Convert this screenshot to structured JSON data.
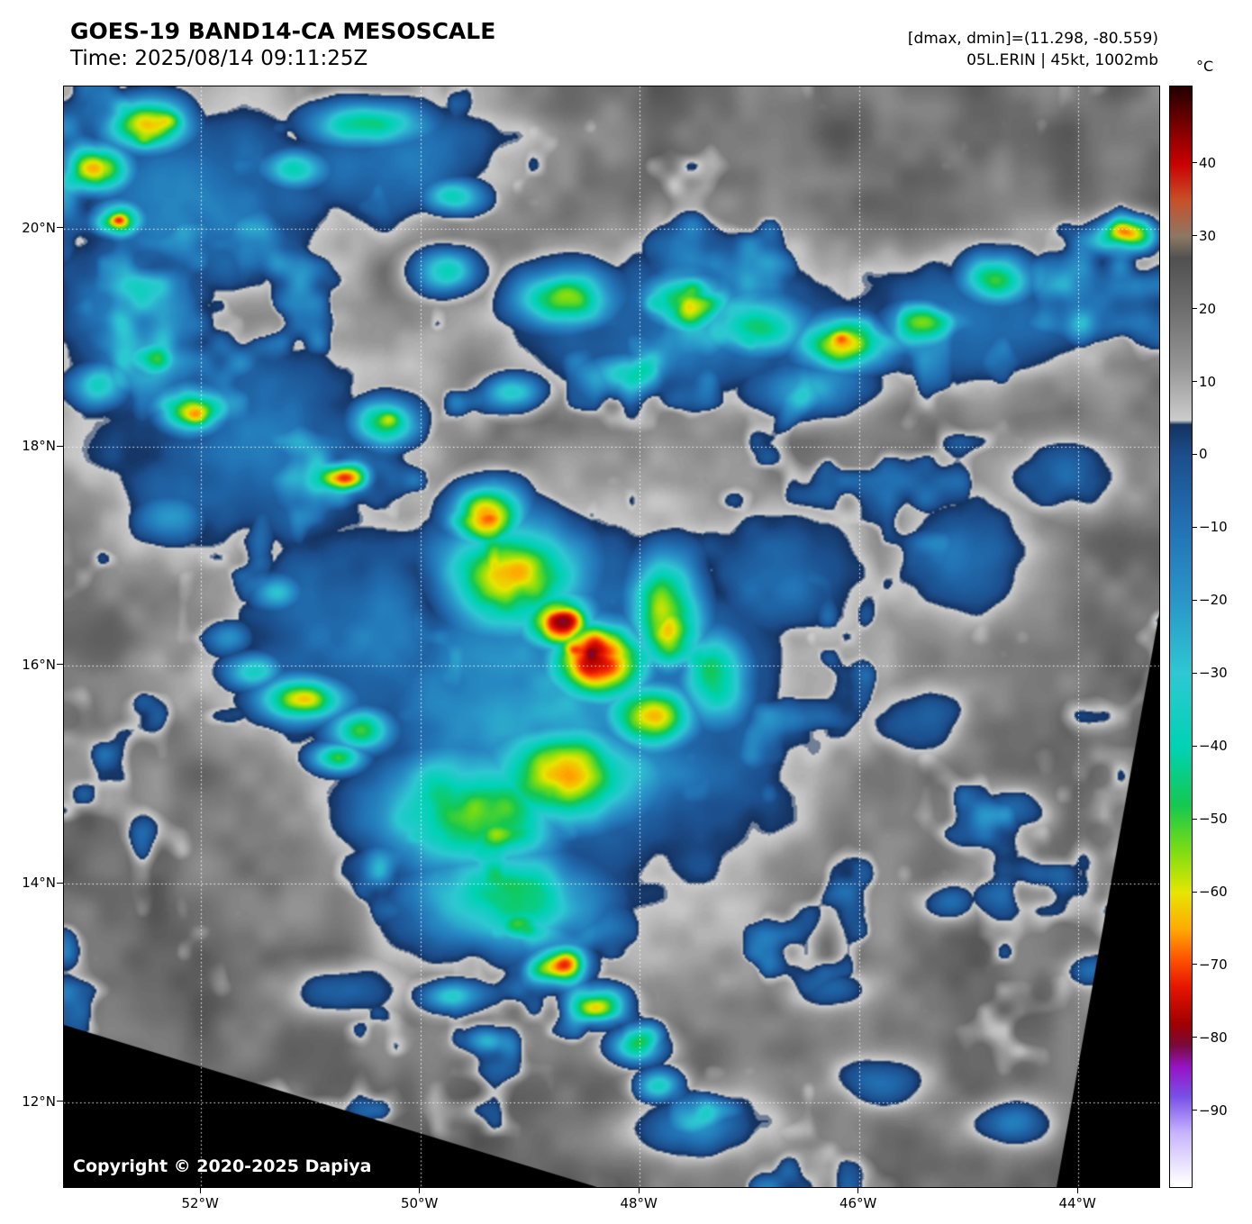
{
  "header": {
    "title": "GOES-19 BAND14-CA MESOSCALE",
    "time": "Time: 2025/08/14 09:11:25Z",
    "dmax_dmin": "[dmax, dmin]=(11.298, -80.559)",
    "storm_info": "05L.ERIN | 45kt, 1002mb"
  },
  "map": {
    "copyright": "Copyright © 2020-2025 Dapiya",
    "lat_ticks": [
      {
        "label": "20°N",
        "value": 20
      },
      {
        "label": "18°N",
        "value": 18
      },
      {
        "label": "16°N",
        "value": 16
      },
      {
        "label": "14°N",
        "value": 14
      },
      {
        "label": "12°N",
        "value": 12
      }
    ],
    "lon_ticks": [
      {
        "label": "52°W",
        "value": 52
      },
      {
        "label": "50°W",
        "value": 50
      },
      {
        "label": "48°W",
        "value": 48
      },
      {
        "label": "46°W",
        "value": 46
      },
      {
        "label": "44°W",
        "value": 44
      }
    ]
  },
  "colorbar": {
    "unit": "°C",
    "ticks": [
      {
        "label": "40",
        "value": 40
      },
      {
        "label": "30",
        "value": 30
      },
      {
        "label": "20",
        "value": 20
      },
      {
        "label": "10",
        "value": 10
      },
      {
        "label": "0",
        "value": 0
      },
      {
        "label": "−10",
        "value": -10
      },
      {
        "label": "−20",
        "value": -20
      },
      {
        "label": "−30",
        "value": -30
      },
      {
        "label": "−40",
        "value": -40
      },
      {
        "label": "−50",
        "value": -50
      },
      {
        "label": "−60",
        "value": -60
      },
      {
        "label": "−70",
        "value": -70
      },
      {
        "label": "−80",
        "value": -80
      },
      {
        "label": "−90",
        "value": -90
      }
    ],
    "range_c": [
      50.6,
      -100.4
    ],
    "colormap_stops": [
      [
        50,
        "#2b0000"
      ],
      [
        44,
        "#8c0000"
      ],
      [
        40,
        "#c80000"
      ],
      [
        35,
        "#c85028"
      ],
      [
        30,
        "#8c7864"
      ],
      [
        27,
        "#505050"
      ],
      [
        20,
        "#6e6e6e"
      ],
      [
        12,
        "#969696"
      ],
      [
        6,
        "#c3c3c3"
      ],
      [
        4.8,
        "#cccccc"
      ],
      [
        4.2,
        "#14325f"
      ],
      [
        0,
        "#1c4e8c"
      ],
      [
        -10,
        "#2272b4"
      ],
      [
        -20,
        "#2a96c8"
      ],
      [
        -30,
        "#2ec8d2"
      ],
      [
        -40,
        "#00d2b4"
      ],
      [
        -48,
        "#14c850"
      ],
      [
        -54,
        "#78dc14"
      ],
      [
        -60,
        "#e6e600"
      ],
      [
        -65,
        "#ffaa00"
      ],
      [
        -69,
        "#ff5500"
      ],
      [
        -73,
        "#e61400"
      ],
      [
        -78,
        "#a00000"
      ],
      [
        -81,
        "#780a3c"
      ],
      [
        -84,
        "#9614c8"
      ],
      [
        -88,
        "#7850e6"
      ],
      [
        -93,
        "#c8b4ff"
      ],
      [
        -100,
        "#ffffff"
      ]
    ]
  }
}
